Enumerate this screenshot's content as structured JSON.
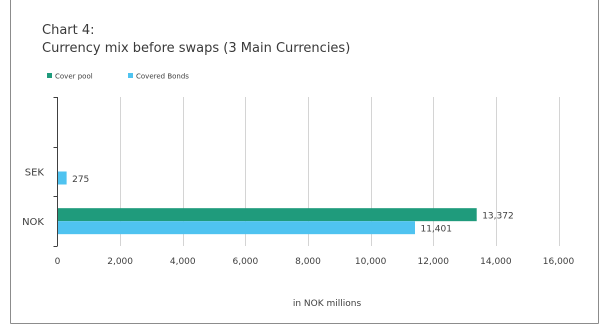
{
  "chart_data": {
    "type": "bar",
    "orientation": "horizontal",
    "title": "Chart 4:",
    "subtitle": "Currency mix before swaps (3 Main Currencies)",
    "xlabel": "in NOK millions",
    "ylabel": "",
    "categories": [
      "NOK",
      "SEK",
      ""
    ],
    "series": [
      {
        "name": "Cover pool",
        "color": "#1f9b7c",
        "values": [
          13372,
          null,
          null
        ]
      },
      {
        "name": "Covered Bonds",
        "color": "#4fc3f0",
        "values": [
          11401,
          275,
          null
        ]
      }
    ],
    "data_labels": {
      "Cover pool": [
        "13,372",
        "",
        ""
      ],
      "Covered Bonds": [
        "11,401",
        "275",
        ""
      ]
    },
    "xlim": [
      0,
      16000
    ],
    "xticks": [
      0,
      2000,
      4000,
      6000,
      8000,
      10000,
      12000,
      14000,
      16000
    ],
    "xtick_labels": [
      "0",
      "2,000",
      "4,000",
      "6,000",
      "8,000",
      "10,000",
      "12,000",
      "14,000",
      "16,000"
    ],
    "grid": true,
    "legend_position": "top-left"
  }
}
